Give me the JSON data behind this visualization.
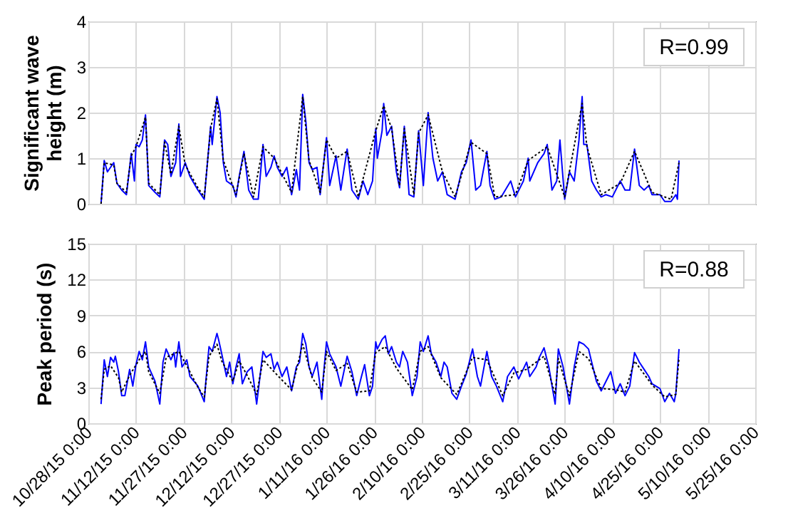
{
  "chart_data": [
    {
      "type": "line",
      "ylabel": "Significant wave height (m)",
      "ylim": [
        0,
        4
      ],
      "yticks": [
        0,
        1,
        2,
        3,
        4
      ],
      "xlim": [
        "2015-10-28",
        "2016-05-25"
      ],
      "xticks": [
        {
          "value": "2015-10-28",
          "label": null
        },
        {
          "value": "2015-11-12",
          "label": null
        },
        {
          "value": "2015-11-27",
          "label": null
        },
        {
          "value": "2015-12-12",
          "label": null
        },
        {
          "value": "2015-12-27",
          "label": null
        },
        {
          "value": "2016-01-11",
          "label": null
        },
        {
          "value": "2016-01-26",
          "label": null
        },
        {
          "value": "2016-02-10",
          "label": null
        },
        {
          "value": "2016-02-25",
          "label": null
        },
        {
          "value": "2016-03-11",
          "label": null
        },
        {
          "value": "2016-03-26",
          "label": null
        },
        {
          "value": "2016-04-10",
          "label": null
        },
        {
          "value": "2016-04-25",
          "label": null
        },
        {
          "value": "2016-05-10",
          "label": null
        },
        {
          "value": "2016-05-25",
          "label": null
        }
      ],
      "grid": true,
      "tick_labels": "y",
      "annotations": [
        "R=0.99"
      ],
      "series": [
        {
          "color": "#0000ff",
          "line_style": "solid",
          "x": [
            "2015-11-01",
            "2015-11-02",
            "2015-11-03",
            "2015-11-04",
            "2015-11-05",
            "2015-11-06",
            "2015-11-07T12:00",
            "2015-11-09",
            "2015-11-10T12:00",
            "2015-11-11T12:00",
            "2015-11-12",
            "2015-11-13",
            "2015-11-14",
            "2015-11-15",
            "2015-11-16",
            "2015-11-18",
            "2015-11-19T12:00",
            "2015-11-21",
            "2015-11-22",
            "2015-11-23",
            "2015-11-24T12:00",
            "2015-11-25T12:00",
            "2015-11-26",
            "2015-11-27T12:00",
            "2015-11-29",
            "2015-12-01T12:00",
            "2015-12-03T12:00",
            "2015-12-05T12:00",
            "2015-12-06",
            "2015-12-07T12:00",
            "2015-12-08T12:00",
            "2015-12-09T12:00",
            "2015-12-10T12:00",
            "2015-12-12T12:00",
            "2015-12-13T12:00",
            "2015-12-14T12:00",
            "2015-12-16",
            "2015-12-17T12:00",
            "2015-12-19",
            "2015-12-20T12:00",
            "2015-12-22",
            "2015-12-23",
            "2015-12-24T12:00",
            "2015-12-25T12:00",
            "2015-12-26T12:00",
            "2015-12-28",
            "2015-12-29T12:00",
            "2015-12-31",
            "2016-01-01T12:00",
            "2016-01-02T12:00",
            "2016-01-03T12:00",
            "2016-01-04T12:00",
            "2016-01-05T12:00",
            "2016-01-06T12:00",
            "2016-01-08",
            "2016-01-09",
            "2016-01-11",
            "2016-01-12",
            "2016-01-14",
            "2016-01-15T12:00",
            "2016-01-17T12:00",
            "2016-01-19",
            "2016-01-21",
            "2016-01-22T12:00",
            "2016-01-24",
            "2016-01-25T12:00",
            "2016-01-26T12:00",
            "2016-01-27",
            "2016-01-28T12:00",
            "2016-01-29",
            "2016-01-30",
            "2016-01-31T12:00",
            "2016-02-02",
            "2016-02-03",
            "2016-02-04T12:00",
            "2016-02-06",
            "2016-02-07T12:00",
            "2016-02-09",
            "2016-02-10T12:00",
            "2016-02-12",
            "2016-02-13T12:00",
            "2016-02-15",
            "2016-02-16T12:00",
            "2016-02-18",
            "2016-02-20T12:00",
            "2016-02-22T12:00",
            "2016-02-24",
            "2016-02-25T12:00",
            "2016-02-27",
            "2016-02-28T12:00",
            "2016-03-01T12:00",
            "2016-03-02T12:00",
            "2016-03-04",
            "2016-03-06",
            "2016-03-09",
            "2016-03-10T12:00",
            "2016-03-13",
            "2016-03-14T12:00",
            "2016-03-15",
            "2016-03-17T12:00",
            "2016-03-19T12:00",
            "2016-03-20T12:00",
            "2016-03-22",
            "2016-03-23T12:00",
            "2016-03-24T12:00",
            "2016-03-26",
            "2016-03-27T12:00",
            "2016-03-29",
            "2016-03-30T12:00",
            "2016-03-31T12:00",
            "2016-04-01",
            "2016-04-02",
            "2016-04-03T12:00",
            "2016-04-05",
            "2016-04-06T12:00",
            "2016-04-08",
            "2016-04-10",
            "2016-04-12T12:00",
            "2016-04-14",
            "2016-04-15T12:00",
            "2016-04-17",
            "2016-04-18T12:00",
            "2016-04-20",
            "2016-04-21T12:00",
            "2016-04-22T12:00",
            "2016-04-25",
            "2016-04-26T12:00",
            "2016-04-28T12:00",
            "2016-04-30",
            "2016-04-30T12:00",
            "2016-05-01"
          ],
          "values": [
            0,
            0.95,
            0.7,
            0.8,
            0.9,
            0.45,
            0.3,
            0.2,
            1.1,
            0.5,
            1.3,
            1.25,
            1.4,
            1.95,
            0.4,
            0.25,
            0.15,
            1.4,
            1.3,
            0.6,
            0.9,
            1.75,
            0.6,
            0.9,
            0.6,
            0.3,
            0.1,
            1.7,
            1.3,
            2.35,
            2.0,
            0.9,
            0.5,
            0.4,
            0.15,
            0.6,
            1.15,
            0.3,
            0.1,
            0.1,
            1.3,
            0.6,
            0.8,
            1.05,
            0.8,
            0.6,
            0.8,
            0.2,
            0.75,
            0.3,
            2.4,
            1.8,
            0.9,
            0.75,
            0.8,
            0.2,
            1.45,
            0.4,
            1.05,
            0.3,
            1.2,
            0.3,
            0.1,
            0.5,
            0.2,
            0.5,
            1.65,
            1.0,
            1.6,
            2.2,
            1.5,
            1.7,
            0.7,
            0.35,
            1.7,
            0.2,
            0.15,
            1.6,
            0.4,
            2.0,
            1.0,
            0.5,
            0.7,
            0.2,
            0.1,
            0.7,
            0.9,
            1.4,
            0.3,
            0.4,
            1.15,
            0.4,
            0.1,
            0.15,
            0.5,
            0.15,
            0.5,
            1.0,
            0.5,
            0.9,
            1.1,
            1.3,
            0.3,
            0.5,
            1.4,
            0.1,
            0.7,
            0.5,
            1.4,
            2.35,
            1.3,
            1.3,
            0.5,
            0.3,
            0.15,
            0.2,
            0.15,
            0.5,
            0.3,
            0.3,
            1.2,
            0.4,
            0.3,
            0.4,
            0.2,
            0.2,
            0.05,
            0.05,
            0.2,
            0.1,
            0.95
          ]
        },
        {
          "color": "#000000",
          "line_style": "dotted",
          "x": [
            "2015-11-01",
            "2015-11-02",
            "2015-11-05",
            "2015-11-06",
            "2015-11-09",
            "2015-11-10T12:00",
            "2015-11-12",
            "2015-11-15",
            "2015-11-16",
            "2015-11-19T12:00",
            "2015-11-21",
            "2015-11-23",
            "2015-11-25T12:00",
            "2015-11-27T12:00",
            "2015-12-01T12:00",
            "2015-12-03T12:00",
            "2015-12-05T12:00",
            "2015-12-07T12:00",
            "2015-12-09T12:00",
            "2015-12-13T12:00",
            "2015-12-16",
            "2015-12-19",
            "2015-12-22",
            "2015-12-25T12:00",
            "2015-12-31",
            "2016-01-03T12:00",
            "2016-01-05T12:00",
            "2016-01-09",
            "2016-01-11",
            "2016-01-14",
            "2016-01-17T12:00",
            "2016-01-21",
            "2016-01-26T12:00",
            "2016-01-29",
            "2016-01-31T12:00",
            "2016-02-03",
            "2016-02-04T12:00",
            "2016-02-07T12:00",
            "2016-02-09",
            "2016-02-12",
            "2016-02-16T12:00",
            "2016-02-20T12:00",
            "2016-02-25T12:00",
            "2016-03-01T12:00",
            "2016-03-04",
            "2016-03-10T12:00",
            "2016-03-14T12:00",
            "2016-03-20T12:00",
            "2016-03-26",
            "2016-03-31T12:00",
            "2016-04-02",
            "2016-04-06T12:00",
            "2016-04-12T12:00",
            "2016-04-17",
            "2016-04-22T12:00",
            "2016-04-28T12:00",
            "2016-05-01"
          ],
          "values": [
            0,
            0.9,
            0.85,
            0.45,
            0.25,
            1.05,
            1.25,
            1.9,
            0.45,
            0.2,
            1.35,
            0.65,
            1.7,
            0.85,
            0.35,
            0.15,
            1.65,
            2.3,
            0.95,
            0.2,
            1.1,
            0.15,
            1.25,
            1.0,
            0.25,
            2.35,
            0.95,
            0.25,
            1.4,
            1.0,
            1.15,
            0.15,
            1.6,
            2.15,
            1.65,
            0.4,
            1.65,
            0.2,
            1.55,
            1.95,
            0.7,
            0.15,
            1.35,
            1.1,
            0.15,
            0.2,
            0.95,
            1.25,
            0.15,
            2.2,
            1.25,
            0.2,
            0.45,
            1.15,
            0.25,
            0.1,
            0.9
          ]
        }
      ]
    },
    {
      "type": "line",
      "ylabel": "Peak period (s)",
      "ylim": [
        0,
        15
      ],
      "yticks": [
        0,
        3,
        6,
        9,
        12,
        15
      ],
      "xlim": [
        "2015-10-28",
        "2016-05-25"
      ],
      "xticks": [
        {
          "value": "2015-10-28",
          "label": "10/28/15 0:00"
        },
        {
          "value": "2015-11-12",
          "label": "11/12/15 0:00"
        },
        {
          "value": "2015-11-27",
          "label": "11/27/15 0:00"
        },
        {
          "value": "2015-12-12",
          "label": "12/12/15 0:00"
        },
        {
          "value": "2015-12-27",
          "label": "12/27/15 0:00"
        },
        {
          "value": "2016-01-11",
          "label": "1/11/16 0:00"
        },
        {
          "value": "2016-01-26",
          "label": "1/26/16 0:00"
        },
        {
          "value": "2016-02-10",
          "label": "2/10/16 0:00"
        },
        {
          "value": "2016-02-25",
          "label": "2/25/16 0:00"
        },
        {
          "value": "2016-03-11",
          "label": "3/11/16 0:00"
        },
        {
          "value": "2016-03-26",
          "label": "3/26/16 0:00"
        },
        {
          "value": "2016-04-10",
          "label": "4/10/16 0:00"
        },
        {
          "value": "2016-04-25",
          "label": "4/25/16 0:00"
        },
        {
          "value": "2016-05-10",
          "label": "5/10/16 0:00"
        },
        {
          "value": "2016-05-25",
          "label": "5/25/16 0:00"
        }
      ],
      "grid": true,
      "annotations": [
        "R=0.88"
      ],
      "series": [
        {
          "color": "#0000ff",
          "line_style": "solid",
          "x": [
            "2015-11-01",
            "2015-11-02",
            "2015-11-03",
            "2015-11-04",
            "2015-11-05",
            "2015-11-05T12:00",
            "2015-11-06T12:00",
            "2015-11-07T12:00",
            "2015-11-08T12:00",
            "2015-11-10",
            "2015-11-11",
            "2015-11-12",
            "2015-11-13",
            "2015-11-14",
            "2015-11-15",
            "2015-11-16",
            "2015-11-18",
            "2015-11-19T12:00",
            "2015-11-20T12:00",
            "2015-11-21T12:00",
            "2015-11-23",
            "2015-11-24",
            "2015-11-24T12:00",
            "2015-11-25T12:00",
            "2015-11-26T12:00",
            "2015-11-28",
            "2015-11-29",
            "2015-12-01T12:00",
            "2015-12-03T12:00",
            "2015-12-04",
            "2015-12-05",
            "2015-12-06",
            "2015-12-07T12:00",
            "2015-12-08",
            "2015-12-09",
            "2015-12-10T12:00",
            "2015-12-11T12:00",
            "2015-12-12T12:00",
            "2015-12-13T12:00",
            "2015-12-14T12:00",
            "2015-12-15T12:00",
            "2015-12-17",
            "2015-12-18T12:00",
            "2015-12-20",
            "2015-12-22",
            "2015-12-23",
            "2015-12-24T12:00",
            "2015-12-25T12:00",
            "2015-12-26T12:00",
            "2015-12-28",
            "2015-12-29T12:00",
            "2015-12-31",
            "2016-01-01T12:00",
            "2016-01-02T12:00",
            "2016-01-03T12:00",
            "2016-01-04T12:00",
            "2016-01-05T12:00",
            "2016-01-06T12:00",
            "2016-01-08",
            "2016-01-09T12:00",
            "2016-01-10",
            "2016-01-11",
            "2016-01-12",
            "2016-01-14",
            "2016-01-15T12:00",
            "2016-01-17T12:00",
            "2016-01-19",
            "2016-01-20T12:00",
            "2016-01-22",
            "2016-01-23",
            "2016-01-24T12:00",
            "2016-01-25T12:00",
            "2016-01-26T12:00",
            "2016-01-27",
            "2016-01-28T12:00",
            "2016-01-29T12:00",
            "2016-01-30T12:00",
            "2016-01-31T12:00",
            "2016-02-02",
            "2016-02-03",
            "2016-02-04",
            "2016-02-05T12:00",
            "2016-02-07",
            "2016-02-08T12:00",
            "2016-02-09T12:00",
            "2016-02-10T12:00",
            "2016-02-12",
            "2016-02-13",
            "2016-02-14T12:00",
            "2016-02-16",
            "2016-02-17",
            "2016-02-18",
            "2016-02-19T12:00",
            "2016-02-21",
            "2016-02-22T12:00",
            "2016-02-24",
            "2016-02-26",
            "2016-02-27T12:00",
            "2016-02-28T12:00",
            "2016-03-01T12:00",
            "2016-03-03",
            "2016-03-04T12:00",
            "2016-03-06T12:00",
            "2016-03-08",
            "2016-03-10",
            "2016-03-11T12:00",
            "2016-03-14",
            "2016-03-15",
            "2016-03-17",
            "2016-03-18",
            "2016-03-19T12:00",
            "2016-03-21",
            "2016-03-23",
            "2016-03-24",
            "2016-03-25T12:00",
            "2016-03-27T12:00",
            "2016-03-29",
            "2016-03-30T12:00",
            "2016-04-01",
            "2016-04-02T12:00",
            "2016-04-03T12:00",
            "2016-04-05",
            "2016-04-06T12:00",
            "2016-04-08",
            "2016-04-09T12:00",
            "2016-04-11",
            "2016-04-12T12:00",
            "2016-04-14",
            "2016-04-15T12:00",
            "2016-04-17",
            "2016-04-18T12:00",
            "2016-04-20",
            "2016-04-21T12:00",
            "2016-04-22T12:00",
            "2016-04-25",
            "2016-04-26T12:00",
            "2016-04-28",
            "2016-04-29T12:00",
            "2016-04-30",
            "2016-05-01"
          ],
          "values": [
            1.6,
            5.3,
            3.9,
            5.5,
            5.1,
            5.6,
            4.3,
            2.3,
            2.3,
            4.5,
            3.1,
            4.9,
            6.0,
            5.3,
            6.8,
            4.7,
            3.5,
            1.6,
            5.1,
            6.2,
            5.3,
            5.9,
            4.7,
            6.8,
            4.7,
            5.3,
            3.9,
            3.1,
            1.8,
            3.5,
            6.4,
            6.0,
            7.5,
            7.0,
            5.8,
            3.9,
            5.1,
            3.3,
            4.7,
            5.8,
            3.3,
            4.3,
            4.7,
            1.6,
            6.0,
            5.5,
            5.8,
            4.5,
            5.1,
            3.9,
            4.7,
            2.7,
            4.7,
            5.1,
            7.5,
            6.6,
            4.7,
            3.9,
            5.1,
            2.0,
            3.9,
            6.8,
            5.8,
            4.7,
            3.1,
            5.6,
            4.3,
            2.3,
            3.9,
            4.9,
            2.3,
            3.1,
            6.8,
            6.2,
            7.0,
            7.3,
            5.8,
            6.4,
            5.1,
            4.7,
            6.0,
            5.1,
            2.3,
            3.9,
            6.8,
            6.0,
            7.3,
            5.8,
            5.1,
            3.9,
            5.1,
            4.7,
            2.5,
            2.0,
            3.1,
            4.1,
            6.2,
            3.9,
            3.1,
            6.0,
            3.9,
            3.1,
            1.8,
            3.9,
            4.7,
            3.7,
            5.1,
            3.9,
            4.7,
            5.5,
            6.3,
            4.7,
            1.6,
            6.2,
            4.7,
            1.6,
            4.7,
            6.8,
            6.6,
            6.2,
            5.1,
            3.5,
            2.7,
            3.5,
            4.3,
            2.5,
            3.3,
            2.3,
            3.1,
            5.9,
            5.1,
            4.5,
            3.9,
            3.3,
            2.9,
            1.8,
            2.5,
            1.8,
            2.5,
            6.2
          ]
        },
        {
          "color": "#000000",
          "line_style": "dotted",
          "x": [
            "2015-11-01",
            "2015-11-02",
            "2015-11-04",
            "2015-11-06T12:00",
            "2015-11-07T12:00",
            "2015-11-10",
            "2015-11-13",
            "2015-11-15",
            "2015-11-16",
            "2015-11-19T12:00",
            "2015-11-21T12:00",
            "2015-11-25T12:00",
            "2015-11-28",
            "2015-12-01T12:00",
            "2015-12-03T12:00",
            "2015-12-05",
            "2015-12-07T12:00",
            "2015-12-09",
            "2015-12-12T12:00",
            "2015-12-14T12:00",
            "2015-12-17",
            "2015-12-20",
            "2015-12-22",
            "2015-12-25T12:00",
            "2015-12-28",
            "2015-12-31",
            "2016-01-03T12:00",
            "2016-01-06T12:00",
            "2016-01-09T12:00",
            "2016-01-11",
            "2016-01-14",
            "2016-01-17T12:00",
            "2016-01-20T12:00",
            "2016-01-24T12:00",
            "2016-01-26T12:00",
            "2016-01-29T12:00",
            "2016-02-02",
            "2016-02-07",
            "2016-02-09T12:00",
            "2016-02-12",
            "2016-02-16",
            "2016-02-21",
            "2016-02-26",
            "2016-03-01T12:00",
            "2016-03-06T12:00",
            "2016-03-10",
            "2016-03-14",
            "2016-03-19T12:00",
            "2016-03-23",
            "2016-03-24",
            "2016-03-27T12:00",
            "2016-03-30T12:00",
            "2016-04-02T12:00",
            "2016-04-06T12:00",
            "2016-04-11",
            "2016-04-14",
            "2016-04-17",
            "2016-04-22T12:00",
            "2016-04-26T12:00",
            "2016-04-30",
            "2016-05-01"
          ],
          "values": [
            2.0,
            4.5,
            4.8,
            3.8,
            2.6,
            4.0,
            5.3,
            6.0,
            4.3,
            2.5,
            5.5,
            6.0,
            4.8,
            3.0,
            2.2,
            5.6,
            6.6,
            5.2,
            3.5,
            5.2,
            4.0,
            2.4,
            5.3,
            4.3,
            3.6,
            2.8,
            6.6,
            3.8,
            2.6,
            6.0,
            4.4,
            5.0,
            2.6,
            2.7,
            5.9,
            6.4,
            4.6,
            2.8,
            6.0,
            6.4,
            3.8,
            2.4,
            5.5,
            5.3,
            2.3,
            4.2,
            4.5,
            5.6,
            2.4,
            5.4,
            2.3,
            6.0,
            5.4,
            2.9,
            2.8,
            2.6,
            5.2,
            3.2,
            2.2,
            2.4,
            5.5
          ]
        }
      ]
    }
  ]
}
